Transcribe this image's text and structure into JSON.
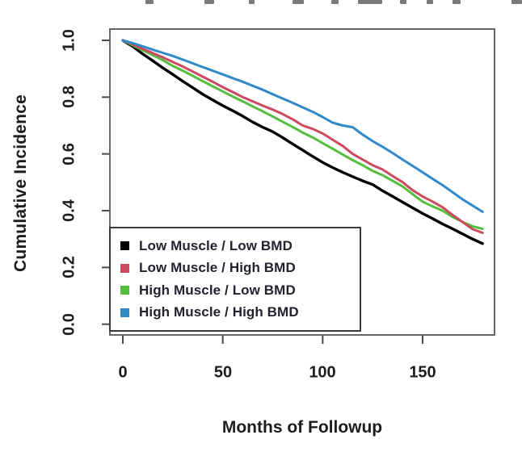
{
  "figure": {
    "y_axis": {
      "label": "Cumulative Incidence",
      "ticks": [
        "0.0",
        "0.2",
        "0.4",
        "0.6",
        "0.8",
        "1.0"
      ]
    },
    "x_axis": {
      "label": "Months of Followup",
      "ticks": [
        "0",
        "50",
        "100",
        "150"
      ]
    }
  },
  "chart_data": {
    "type": "line",
    "title": "",
    "xlabel": "Months of Followup",
    "ylabel": "Cumulative Incidence",
    "xlim": [
      0,
      187
    ],
    "ylim": [
      0.0,
      1.0
    ],
    "x_ticks": [
      0,
      50,
      100,
      150
    ],
    "y_ticks": [
      0.0,
      0.2,
      0.4,
      0.6,
      0.8,
      1.0
    ],
    "grid": false,
    "legend_position": "inside-bottom-left",
    "x": [
      0,
      5,
      10,
      15,
      20,
      25,
      30,
      35,
      40,
      45,
      50,
      55,
      60,
      65,
      70,
      75,
      80,
      85,
      90,
      95,
      100,
      105,
      110,
      115,
      120,
      125,
      130,
      135,
      140,
      145,
      150,
      155,
      160,
      165,
      170,
      175,
      180
    ],
    "series": [
      {
        "name": "Low Muscle / Low BMD",
        "color": "#000000",
        "values": [
          1.0,
          0.978,
          0.952,
          0.928,
          0.903,
          0.88,
          0.856,
          0.833,
          0.81,
          0.79,
          0.77,
          0.752,
          0.733,
          0.712,
          0.694,
          0.678,
          0.657,
          0.635,
          0.613,
          0.591,
          0.57,
          0.552,
          0.535,
          0.52,
          0.505,
          0.492,
          0.47,
          0.45,
          0.43,
          0.41,
          0.39,
          0.372,
          0.353,
          0.336,
          0.318,
          0.3,
          0.284
        ]
      },
      {
        "name": "Low Muscle / High BMD",
        "color": "#CB4A60",
        "values": [
          1.0,
          0.986,
          0.97,
          0.955,
          0.94,
          0.924,
          0.908,
          0.89,
          0.872,
          0.854,
          0.835,
          0.818,
          0.8,
          0.785,
          0.77,
          0.756,
          0.74,
          0.722,
          0.7,
          0.688,
          0.672,
          0.65,
          0.628,
          0.6,
          0.58,
          0.56,
          0.545,
          0.522,
          0.5,
          0.472,
          0.45,
          0.432,
          0.412,
          0.385,
          0.36,
          0.335,
          0.322
        ]
      },
      {
        "name": "High Muscle / Low BMD",
        "color": "#54BE3E",
        "values": [
          1.0,
          0.983,
          0.965,
          0.948,
          0.93,
          0.91,
          0.893,
          0.875,
          0.856,
          0.838,
          0.82,
          0.802,
          0.785,
          0.767,
          0.75,
          0.732,
          0.713,
          0.695,
          0.675,
          0.658,
          0.638,
          0.618,
          0.598,
          0.578,
          0.56,
          0.54,
          0.525,
          0.505,
          0.485,
          0.458,
          0.432,
          0.415,
          0.4,
          0.378,
          0.36,
          0.345,
          0.336
        ]
      },
      {
        "name": "High Muscle / High BMD",
        "color": "#3189C8",
        "values": [
          1.0,
          0.99,
          0.979,
          0.967,
          0.956,
          0.945,
          0.932,
          0.919,
          0.906,
          0.893,
          0.88,
          0.867,
          0.854,
          0.84,
          0.826,
          0.81,
          0.795,
          0.78,
          0.764,
          0.748,
          0.73,
          0.71,
          0.7,
          0.694,
          0.668,
          0.645,
          0.625,
          0.603,
          0.58,
          0.558,
          0.535,
          0.512,
          0.49,
          0.465,
          0.44,
          0.418,
          0.396
        ]
      }
    ]
  }
}
